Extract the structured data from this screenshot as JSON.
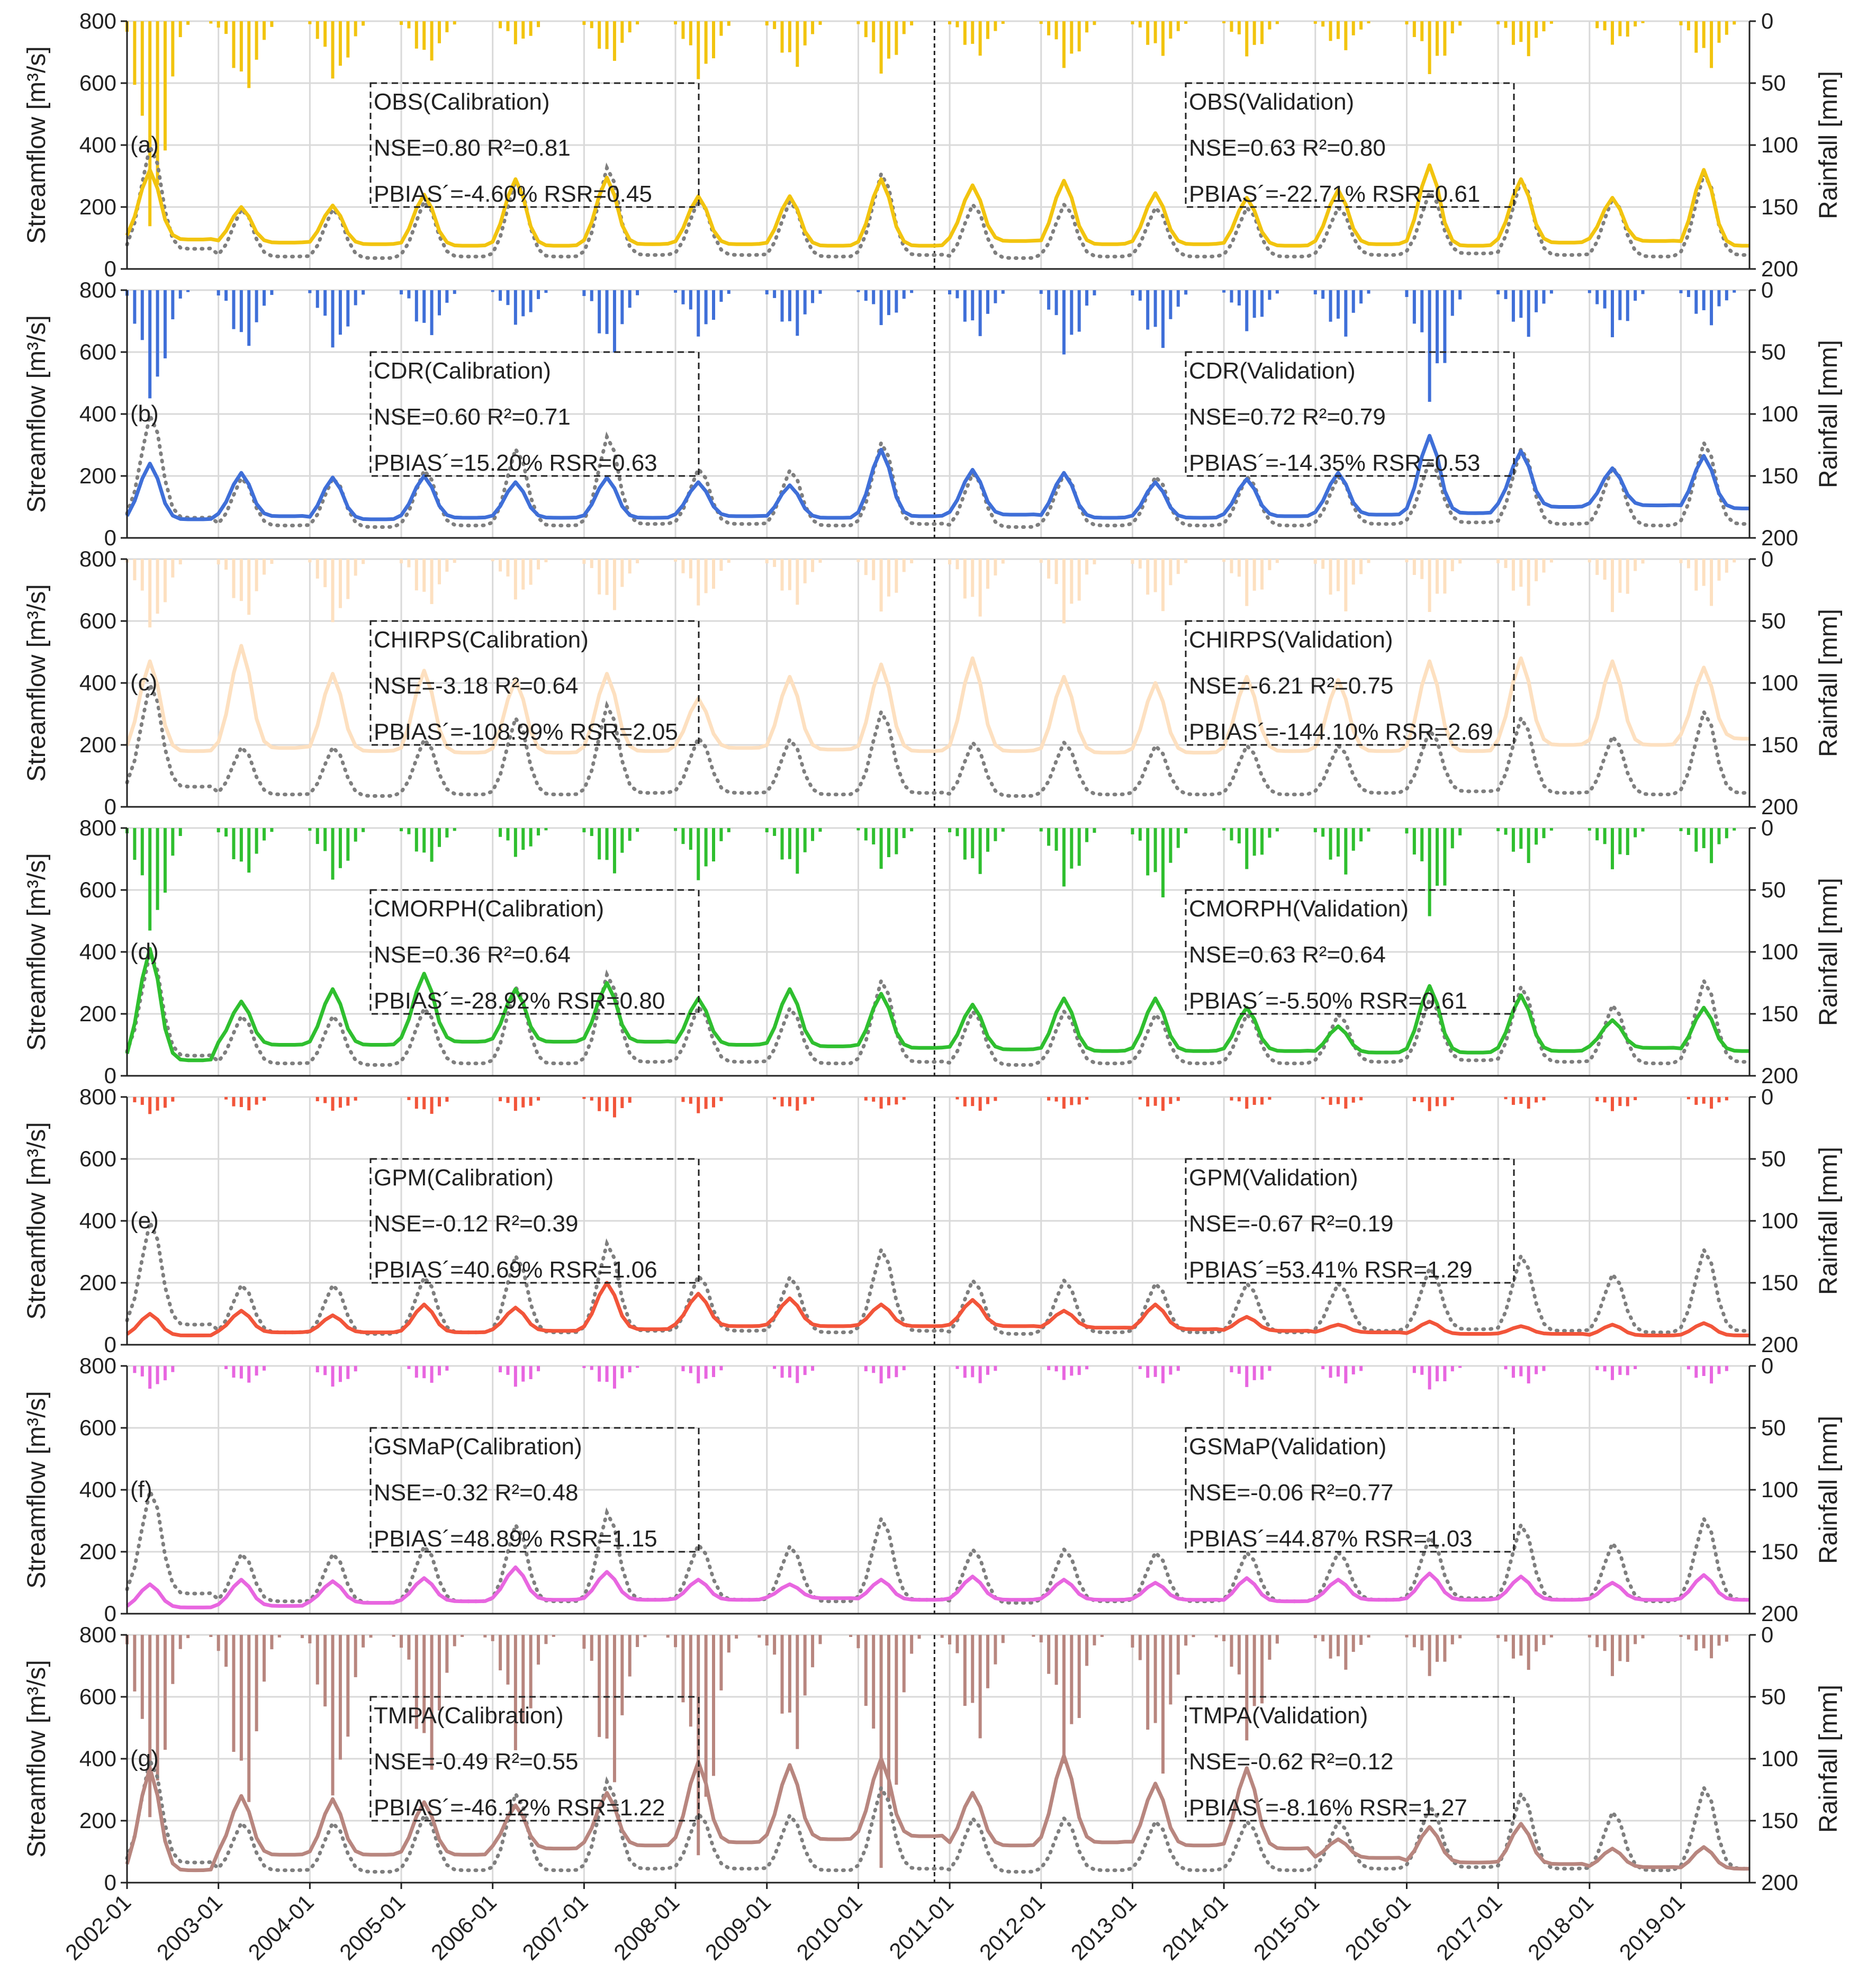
{
  "y_left_label": "Streamflow [m³/s]",
  "y_right_label": "Rainfall [mm]",
  "x_tick_labels": [
    "2002-01",
    "2003-01",
    "2004-01",
    "2005-01",
    "2006-01",
    "2007-01",
    "2008-01",
    "2009-01",
    "2010-01",
    "2011-01",
    "2012-01",
    "2013-01",
    "2014-01",
    "2015-01",
    "2016-01",
    "2017-01",
    "2018-01",
    "2019-01"
  ],
  "observed_color": "#7f7f7f",
  "chart_data": [
    {
      "type": "line",
      "panel_label": "(a)",
      "color": "#f2c40f",
      "ylim": [
        0,
        800
      ],
      "y2lim": [
        200,
        0
      ],
      "x_range": [
        "2002-01",
        "2019-09"
      ],
      "yticks": [
        0,
        200,
        400,
        600,
        800
      ],
      "y2ticks": [
        0,
        50,
        100,
        150,
        200
      ],
      "split_date": "2010-11",
      "calibration": {
        "title": "OBS(Calibration)",
        "line1": "NSE=0.80 R²=0.81",
        "line2": "PBIAS´=-4.60% RSR=0.45"
      },
      "validation": {
        "title": "OBS(Validation)",
        "line1": "NSE=0.63 R²=0.80",
        "line2": "PBIAS´=-22.71% RSR=0.61"
      },
      "sim_peaks": [
        320,
        200,
        205,
        240,
        290,
        295,
        235,
        235,
        290,
        270,
        285,
        245,
        230,
        255,
        335,
        290,
        230,
        320
      ],
      "sim_base": [
        95,
        85,
        80,
        75,
        75,
        80,
        80,
        75,
        75,
        90,
        80,
        80,
        75,
        80,
        75,
        85,
        90,
        75
      ],
      "rain_peaks": [
        180,
        60,
        50,
        35,
        20,
        35,
        50,
        40,
        45,
        30,
        40,
        30,
        30,
        25,
        45,
        30,
        20,
        40
      ],
      "rain_scale": 1.0
    },
    {
      "type": "line",
      "panel_label": "(b)",
      "color": "#3f6fd8",
      "ylim": [
        0,
        800
      ],
      "y2lim": [
        200,
        0
      ],
      "x_range": [
        "2002-01",
        "2019-09"
      ],
      "yticks": [
        0,
        200,
        400,
        600,
        800
      ],
      "y2ticks": [
        0,
        50,
        100,
        150,
        200
      ],
      "split_date": "2010-11",
      "calibration": {
        "title": "CDR(Calibration)",
        "line1": "NSE=0.60 R²=0.71",
        "line2": "PBIAS´=15.20% RSR=0.63"
      },
      "validation": {
        "title": "CDR(Validation)",
        "line1": "NSE=0.72 R²=0.79",
        "line2": "PBIAS´=-14.35% RSR=0.53"
      },
      "sim_peaks": [
        240,
        210,
        195,
        200,
        180,
        195,
        180,
        170,
        285,
        220,
        210,
        180,
        190,
        210,
        330,
        280,
        225,
        265
      ],
      "sim_base": [
        60,
        70,
        60,
        65,
        65,
        65,
        70,
        65,
        70,
        75,
        65,
        65,
        70,
        75,
        80,
        100,
        105,
        95
      ],
      "rain_peaks": [
        95,
        50,
        50,
        40,
        30,
        55,
        40,
        40,
        30,
        40,
        55,
        50,
        35,
        40,
        95,
        40,
        40,
        30
      ],
      "rain_scale": 1.0
    },
    {
      "type": "line",
      "panel_label": "(c)",
      "color": "#fde0c0",
      "ylim": [
        0,
        800
      ],
      "y2lim": [
        200,
        0
      ],
      "x_range": [
        "2002-01",
        "2019-09"
      ],
      "yticks": [
        0,
        200,
        400,
        600,
        800
      ],
      "y2ticks": [
        0,
        50,
        100,
        150,
        200
      ],
      "split_date": "2010-11",
      "calibration": {
        "title": "CHIRPS(Calibration)",
        "line1": "NSE=-3.18 R²=0.64",
        "line2": "PBIAS´=-108.99% RSR=2.05"
      },
      "validation": {
        "title": "CHIRPS(Validation)",
        "line1": "NSE=-6.21 R²=0.75",
        "line2": "PBIAS´=-144.10% RSR=2.69"
      },
      "sim_peaks": [
        470,
        520,
        430,
        440,
        410,
        430,
        350,
        420,
        460,
        480,
        420,
        400,
        420,
        410,
        470,
        480,
        470,
        450
      ],
      "sim_base": [
        180,
        190,
        180,
        175,
        175,
        180,
        190,
        185,
        180,
        180,
        175,
        175,
        180,
        180,
        180,
        200,
        200,
        220
      ],
      "rain_peaks": [
        60,
        50,
        55,
        40,
        35,
        45,
        40,
        40,
        45,
        50,
        55,
        45,
        40,
        45,
        45,
        40,
        45,
        40
      ],
      "rain_scale": 1.0
    },
    {
      "type": "line",
      "panel_label": "(d)",
      "color": "#2fbf2f",
      "ylim": [
        0,
        800
      ],
      "y2lim": [
        200,
        0
      ],
      "x_range": [
        "2002-01",
        "2019-09"
      ],
      "yticks": [
        0,
        200,
        400,
        600,
        800
      ],
      "y2ticks": [
        0,
        50,
        100,
        150,
        200
      ],
      "split_date": "2010-11",
      "calibration": {
        "title": "CMORPH(Calibration)",
        "line1": "NSE=0.36 R²=0.64",
        "line2": "PBIAS´=-28.92% RSR=0.80"
      },
      "validation": {
        "title": "CMORPH(Validation)",
        "line1": "NSE=0.63 R²=0.64",
        "line2": "PBIAS´=-5.50% RSR=0.61"
      },
      "sim_peaks": [
        410,
        240,
        280,
        330,
        280,
        300,
        250,
        280,
        265,
        230,
        250,
        250,
        220,
        160,
        290,
        260,
        180,
        220
      ],
      "sim_base": [
        50,
        100,
        100,
        110,
        110,
        110,
        100,
        95,
        90,
        85,
        80,
        80,
        80,
        75,
        75,
        80,
        90,
        80
      ],
      "rain_peaks": [
        90,
        40,
        45,
        30,
        25,
        40,
        45,
        40,
        35,
        40,
        50,
        60,
        35,
        40,
        75,
        30,
        35,
        30
      ],
      "rain_scale": 1.0
    },
    {
      "type": "line",
      "panel_label": "(e)",
      "color": "#f2553a",
      "ylim": [
        0,
        800
      ],
      "y2lim": [
        200,
        0
      ],
      "x_range": [
        "2002-01",
        "2019-09"
      ],
      "yticks": [
        0,
        200,
        400,
        600,
        800
      ],
      "y2ticks": [
        0,
        50,
        100,
        150,
        200
      ],
      "split_date": "2010-11",
      "calibration": {
        "title": "GPM(Calibration)",
        "line1": "NSE=-0.12 R²=0.39",
        "line2": "PBIAS´=40.69% RSR=1.06"
      },
      "validation": {
        "title": "GPM(Validation)",
        "line1": "NSE=-0.67 R²=0.19",
        "line2": "PBIAS´=53.41% RSR=1.29"
      },
      "sim_peaks": [
        100,
        110,
        95,
        130,
        120,
        200,
        165,
        150,
        130,
        145,
        110,
        130,
        90,
        65,
        75,
        60,
        65,
        70
      ],
      "sim_base": [
        30,
        40,
        40,
        40,
        45,
        50,
        60,
        60,
        60,
        60,
        55,
        50,
        45,
        40,
        35,
        35,
        30,
        30
      ],
      "rain_peaks": [
        15,
        12,
        12,
        15,
        12,
        18,
        14,
        12,
        10,
        12,
        10,
        12,
        10,
        10,
        12,
        10,
        12,
        10
      ],
      "rain_scale": 1.0
    },
    {
      "type": "line",
      "panel_label": "(f)",
      "color": "#e866e0",
      "ylim": [
        0,
        800
      ],
      "y2lim": [
        200,
        0
      ],
      "x_range": [
        "2002-01",
        "2019-09"
      ],
      "yticks": [
        0,
        200,
        400,
        600,
        800
      ],
      "y2ticks": [
        0,
        50,
        100,
        150,
        200
      ],
      "split_date": "2010-11",
      "calibration": {
        "title": "GSMaP(Calibration)",
        "line1": "NSE=-0.32 R²=0.48",
        "line2": "PBIAS´=48.89% RSR=1.15"
      },
      "validation": {
        "title": "GSMaP(Validation)",
        "line1": "NSE=-0.06 R²=0.77",
        "line2": "PBIAS´=44.87% RSR=1.03"
      },
      "sim_peaks": [
        95,
        110,
        105,
        115,
        150,
        135,
        110,
        95,
        110,
        120,
        110,
        100,
        115,
        110,
        130,
        120,
        100,
        125
      ],
      "sim_base": [
        20,
        25,
        35,
        40,
        45,
        45,
        45,
        50,
        45,
        45,
        45,
        45,
        40,
        45,
        45,
        45,
        45,
        45
      ],
      "rain_peaks": [
        20,
        15,
        18,
        15,
        18,
        20,
        15,
        15,
        15,
        15,
        12,
        15,
        18,
        15,
        20,
        15,
        12,
        15
      ],
      "rain_scale": 1.0
    },
    {
      "type": "line",
      "panel_label": "(g)",
      "color": "#b8867f",
      "ylim": [
        0,
        800
      ],
      "y2lim": [
        200,
        0
      ],
      "x_range": [
        "2002-01",
        "2019-09"
      ],
      "yticks": [
        0,
        200,
        400,
        600,
        800
      ],
      "y2ticks": [
        0,
        50,
        100,
        150,
        200
      ],
      "split_date": "2010-11",
      "calibration": {
        "title": "TMPA(Calibration)",
        "line1": "NSE=-0.49 R²=0.55",
        "line2": "PBIAS´=-46.12% RSR=1.22"
      },
      "validation": {
        "title": "TMPA(Validation)",
        "line1": "NSE=-0.62 R²=0.12",
        "line2": "PBIAS´=-8.16% RSR=1.27"
      },
      "sim_peaks": [
        370,
        280,
        270,
        260,
        250,
        290,
        390,
        380,
        400,
        290,
        410,
        320,
        370,
        140,
        180,
        190,
        110,
        115
      ],
      "sim_base": [
        40,
        90,
        90,
        90,
        110,
        120,
        130,
        140,
        150,
        120,
        130,
        120,
        110,
        80,
        65,
        60,
        50,
        45
      ],
      "rain_peaks": [
        160,
        150,
        140,
        120,
        100,
        130,
        190,
        100,
        200,
        90,
        110,
        120,
        90,
        30,
        35,
        30,
        35,
        20
      ],
      "rain_scale": 1.0
    }
  ],
  "observed_peaks": [
    400,
    195,
    195,
    220,
    290,
    330,
    225,
    220,
    310,
    210,
    210,
    200,
    200,
    200,
    250,
    290,
    230,
    310
  ],
  "observed_base": [
    65,
    40,
    35,
    40,
    40,
    45,
    45,
    40,
    45,
    35,
    40,
    40,
    40,
    45,
    50,
    45,
    40,
    45
  ]
}
